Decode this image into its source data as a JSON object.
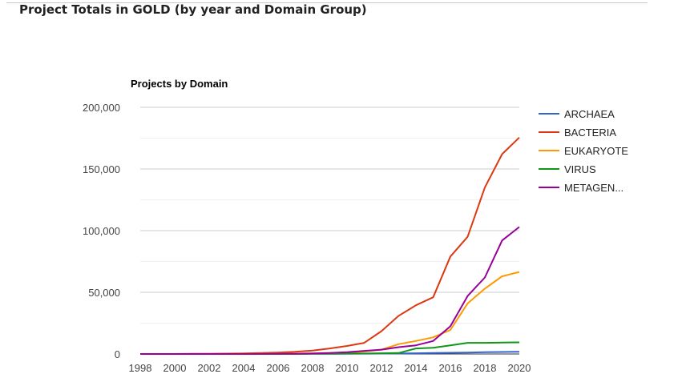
{
  "page": {
    "title": "Project Totals in GOLD (by year and Domain Group)"
  },
  "chart_data": {
    "type": "line",
    "title": "Projects by Domain",
    "xlabel": "",
    "ylabel": "",
    "x": [
      1998,
      1999,
      2000,
      2001,
      2002,
      2003,
      2004,
      2005,
      2006,
      2007,
      2008,
      2009,
      2010,
      2011,
      2012,
      2013,
      2014,
      2015,
      2016,
      2017,
      2018,
      2019,
      2020
    ],
    "x_ticks": [
      1998,
      2000,
      2002,
      2004,
      2006,
      2008,
      2010,
      2012,
      2014,
      2016,
      2018,
      2020
    ],
    "x_tick_labels": [
      "1998",
      "2000",
      "2002",
      "2004",
      "2006",
      "2008",
      "2010",
      "2012",
      "2014",
      "2016",
      "2018",
      "2020"
    ],
    "xlim": [
      1998,
      2020
    ],
    "ylim": [
      0,
      200000
    ],
    "y_ticks": [
      0,
      50000,
      100000,
      150000,
      200000
    ],
    "y_tick_labels": [
      "0",
      "50,000",
      "100,000",
      "150,000",
      "200,000"
    ],
    "y_minor_gridlines": [
      25000,
      75000,
      125000,
      175000
    ],
    "grid": true,
    "legend_position": "right",
    "series": [
      {
        "name": "ARCHAEA",
        "legend_label": "ARCHAEA",
        "color": "#3366cc",
        "values": [
          0,
          0,
          0,
          0,
          20,
          30,
          40,
          50,
          60,
          80,
          100,
          150,
          200,
          250,
          300,
          400,
          600,
          800,
          1000,
          1200,
          1400,
          1600,
          1800
        ]
      },
      {
        "name": "BACTERIA",
        "legend_label": "BACTERIA",
        "color": "#dc3912",
        "values": [
          0,
          0,
          0,
          100,
          200,
          300,
          500,
          800,
          1200,
          1800,
          2800,
          4500,
          6500,
          9000,
          18500,
          31000,
          39500,
          46000,
          79000,
          95000,
          135000,
          162000,
          175500
        ]
      },
      {
        "name": "EUKARYOTE",
        "legend_label": "EUKARYOTE",
        "color": "#ff9900",
        "values": [
          0,
          0,
          0,
          0,
          0,
          50,
          100,
          150,
          200,
          300,
          500,
          800,
          1200,
          2000,
          3500,
          8000,
          10500,
          13500,
          19500,
          41000,
          53000,
          63000,
          66500
        ]
      },
      {
        "name": "VIRUS",
        "legend_label": "VIRUS",
        "color": "#109618",
        "values": [
          0,
          0,
          0,
          0,
          0,
          0,
          0,
          0,
          0,
          50,
          100,
          200,
          300,
          400,
          600,
          800,
          4500,
          5000,
          7000,
          9000,
          9000,
          9200,
          9400
        ]
      },
      {
        "name": "METAGENOME",
        "legend_label": "METAGEN...",
        "color": "#990099",
        "values": [
          0,
          0,
          0,
          0,
          0,
          0,
          0,
          50,
          100,
          200,
          400,
          800,
          1500,
          2500,
          3500,
          5500,
          7000,
          10500,
          22500,
          47000,
          62000,
          92000,
          103000
        ]
      }
    ]
  }
}
